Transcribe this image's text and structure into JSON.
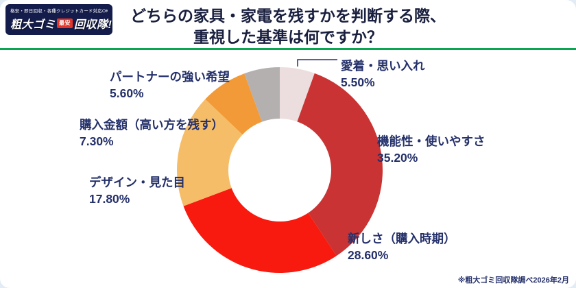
{
  "logo": {
    "tagline": "格安・即日回収・各種クレジットカード対応OK!",
    "main_left": "粗大ゴミ",
    "badge": "最安",
    "main_right": "回収隊!"
  },
  "title": {
    "line1": "どちらの家具・家電を残すかを判断する際、",
    "line2": "重視した基準は何ですか？"
  },
  "footnote": "※粗大ゴミ回収隊調べ2026年2月",
  "colors": {
    "accent_green": "#0aa551",
    "label_navy": "#24306a",
    "logo_bg": "#131c4a",
    "logo_red": "#e53529",
    "card_bg": "#ffffff",
    "page_bg": "#e3ebf4"
  },
  "chart_data": {
    "type": "pie",
    "donut": true,
    "start_angle_deg": 0,
    "direction": "clockwise",
    "title": "どちらの家具・家電を残すかを判断する際、重視した基準は何ですか？",
    "source": "※粗大ゴミ回収隊調べ2026年2月",
    "segments": [
      {
        "label": "愛着・思い入れ",
        "pct_label": "5.50%",
        "value": 5.5,
        "color": "#ecdede"
      },
      {
        "label": "機能性・使いやすさ",
        "pct_label": "35.20%",
        "value": 35.2,
        "color": "#c93333"
      },
      {
        "label": "新しさ（購入時期）",
        "pct_label": "28.60%",
        "value": 28.6,
        "color": "#f8190f"
      },
      {
        "label": "デザイン・見た目",
        "pct_label": "17.80%",
        "value": 17.8,
        "color": "#f6bd68"
      },
      {
        "label": "購入金額（高い方を残す）",
        "pct_label": "7.30%",
        "value": 7.3,
        "color": "#f29a38"
      },
      {
        "label": "パートナーの強い希望",
        "pct_label": "5.60%",
        "value": 5.6,
        "color": "#b5b0b0"
      }
    ]
  }
}
